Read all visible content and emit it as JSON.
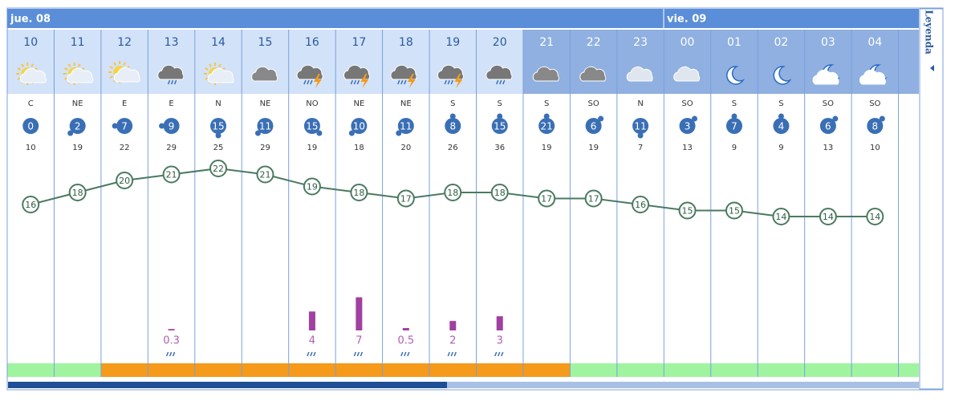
{
  "days": [
    {
      "label": "jue. 08"
    },
    {
      "label": "vie. 09"
    }
  ],
  "legend": "Leyenda",
  "hours": [
    "10",
    "11",
    "12",
    "13",
    "14",
    "15",
    "16",
    "17",
    "18",
    "19",
    "20",
    "21",
    "22",
    "23",
    "00",
    "01",
    "02",
    "03",
    "04"
  ],
  "wind_dir": [
    "C",
    "NE",
    "E",
    "E",
    "N",
    "NE",
    "NO",
    "NE",
    "NE",
    "S",
    "S",
    "S",
    "SO",
    "N",
    "SO",
    "S",
    "S",
    "SO",
    "SO"
  ],
  "wind_speed": [
    0,
    2,
    7,
    9,
    15,
    11,
    15,
    10,
    11,
    8,
    15,
    21,
    6,
    11,
    3,
    7,
    4,
    6,
    8
  ],
  "gust": [
    10,
    19,
    22,
    29,
    25,
    29,
    19,
    18,
    20,
    26,
    36,
    19,
    19,
    7,
    13,
    9,
    9,
    13,
    10
  ],
  "temperature": [
    16,
    18,
    20,
    21,
    22,
    21,
    19,
    18,
    17,
    18,
    18,
    17,
    17,
    16,
    15,
    15,
    14,
    14,
    14
  ],
  "precipitation": [
    null,
    null,
    null,
    0.3,
    null,
    null,
    4,
    7,
    0.5,
    2,
    3,
    null,
    null,
    null,
    null,
    null,
    null,
    null,
    null
  ]
}
